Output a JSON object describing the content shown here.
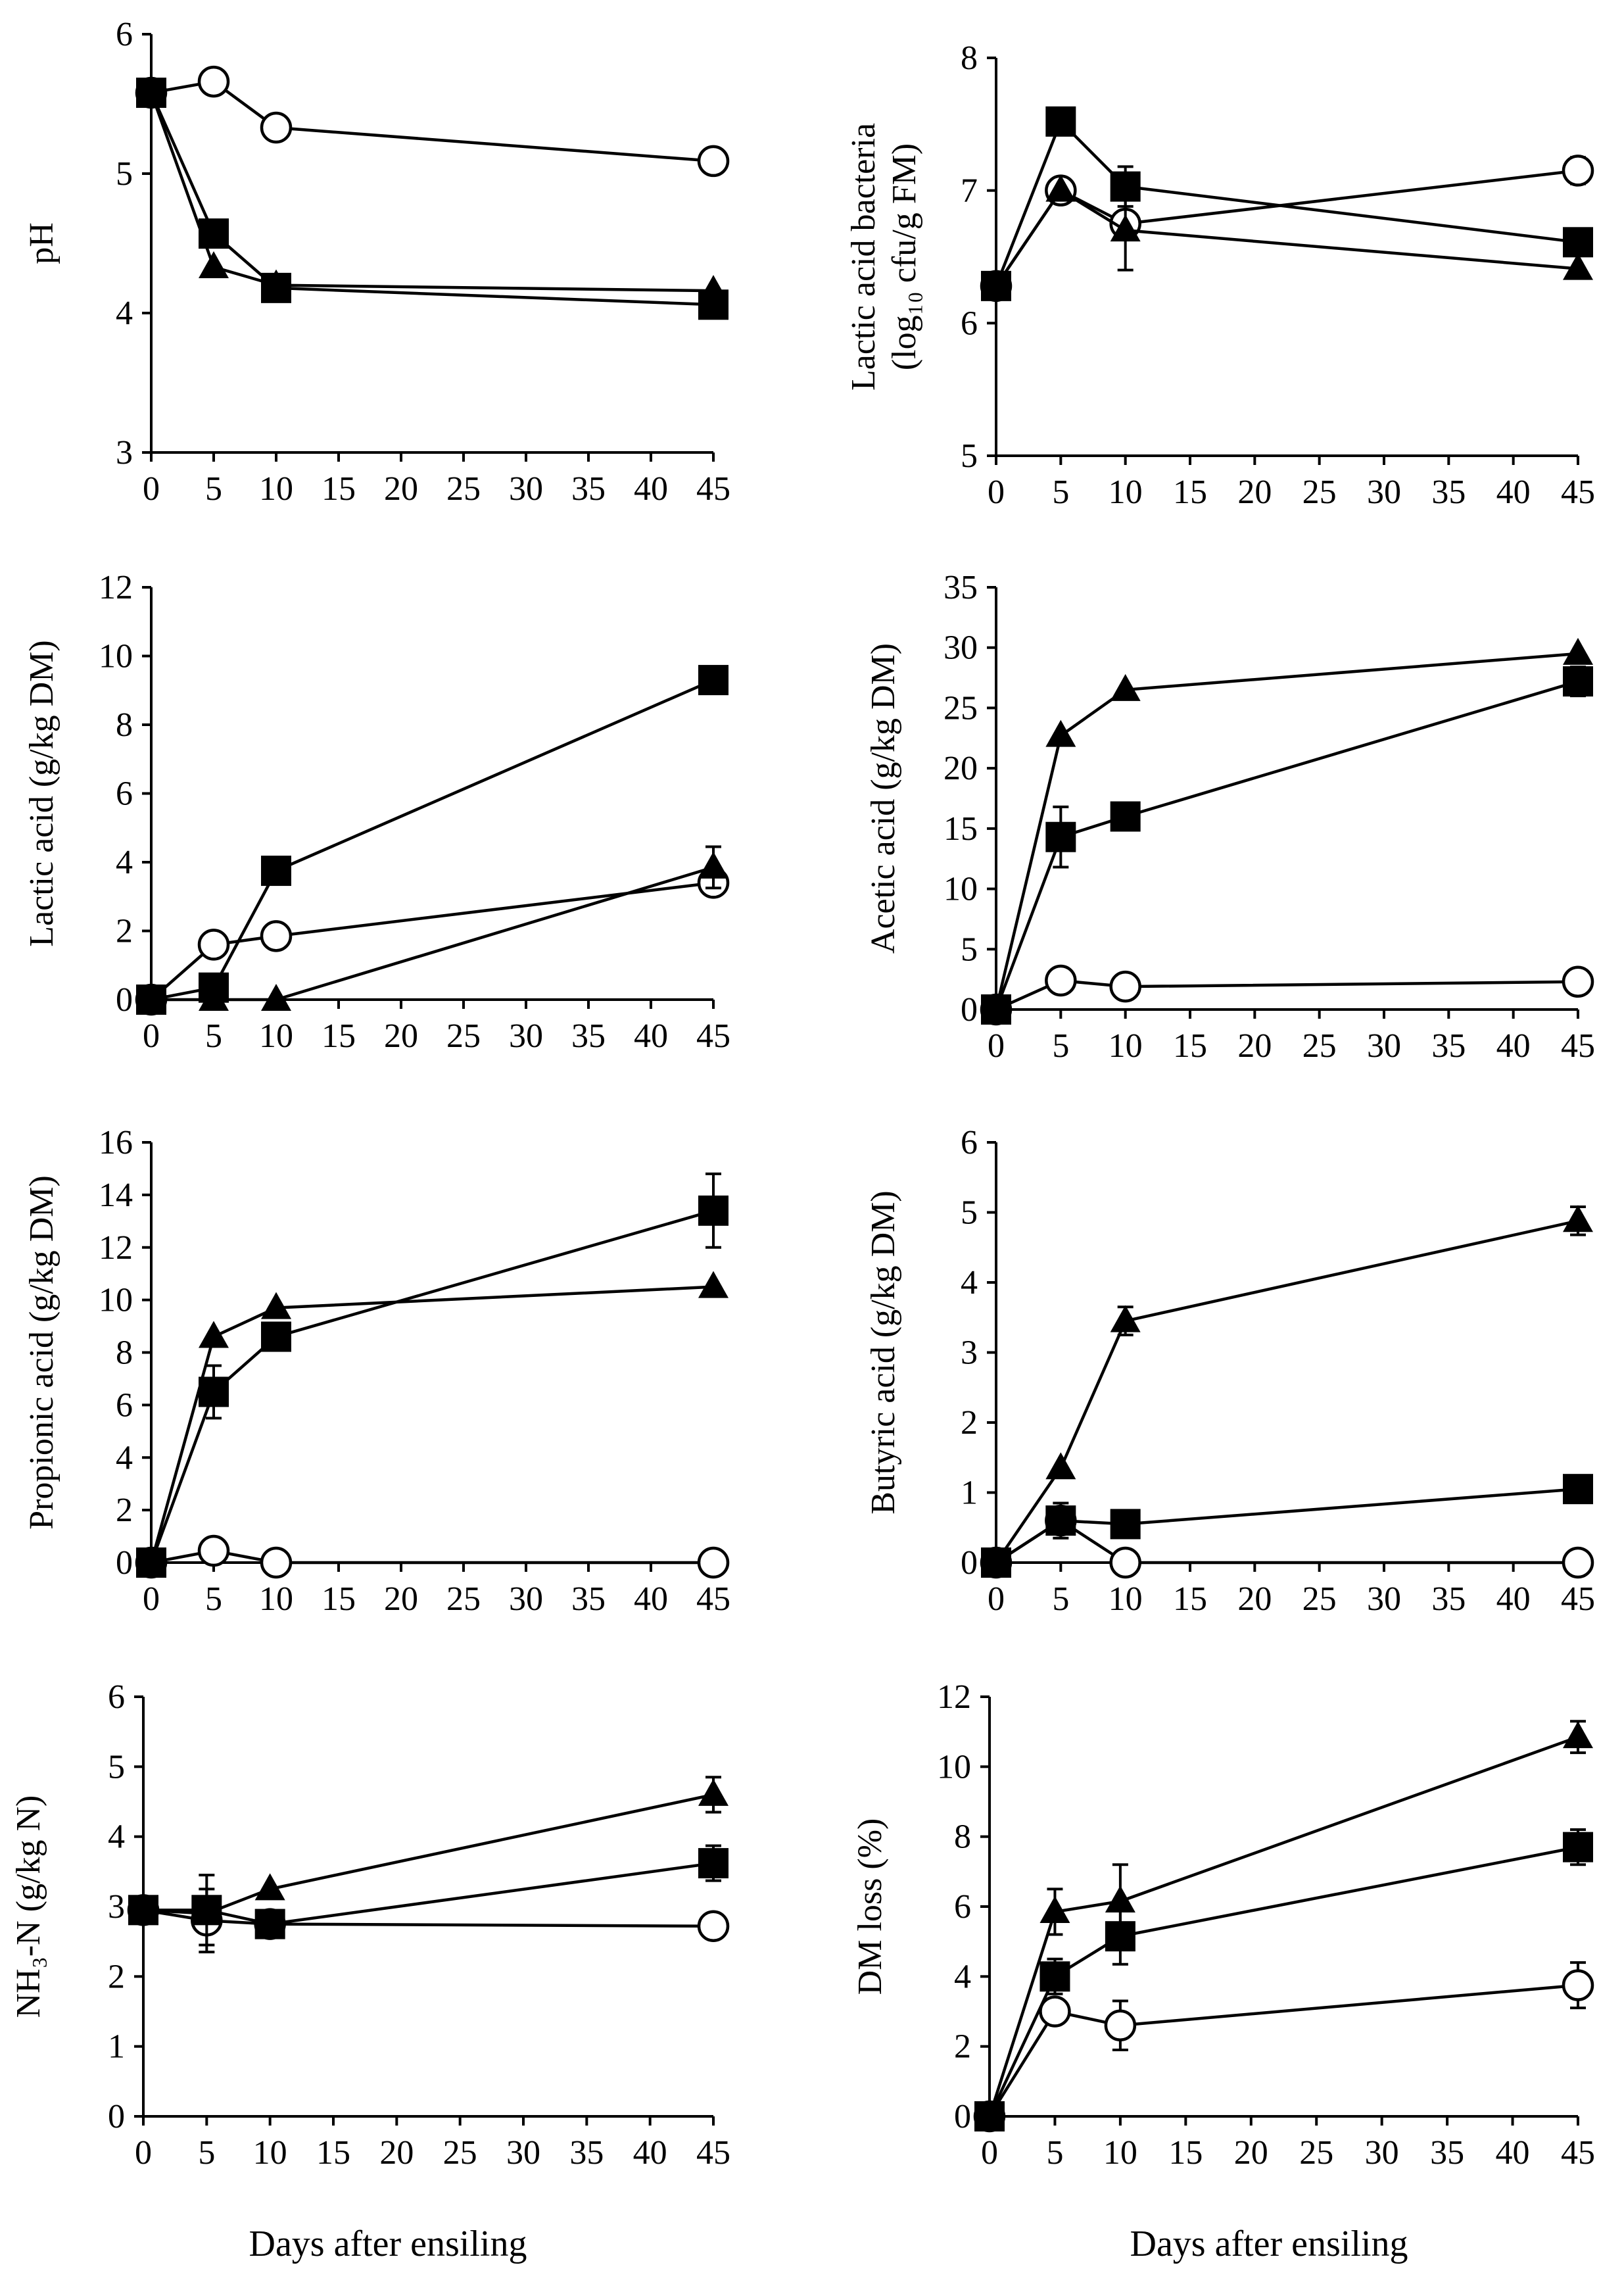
{
  "figure": {
    "xlabel_bottom_left": "Days after ensiling",
    "xlabel_bottom_right": "Days after ensiling"
  },
  "chart_data": [
    {
      "type": "line",
      "ylabel": "pH",
      "xlim": [
        0,
        45
      ],
      "ylim": [
        3,
        6
      ],
      "yticks": [
        "3",
        "4",
        "5",
        "6"
      ],
      "xticks": [
        "0",
        "5",
        "10",
        "15",
        "20",
        "25",
        "30",
        "35",
        "40",
        "45"
      ],
      "x": [
        0,
        5,
        10,
        45
      ],
      "series": [
        {
          "marker": "circle-open",
          "values": [
            5.58,
            5.66,
            5.33,
            5.09
          ],
          "err": [
            0,
            0,
            0,
            0
          ]
        },
        {
          "marker": "triangle",
          "values": [
            5.58,
            4.33,
            4.2,
            4.16
          ],
          "err": [
            0,
            0,
            0,
            0
          ]
        },
        {
          "marker": "square",
          "values": [
            5.58,
            4.57,
            4.18,
            4.06
          ],
          "err": [
            0,
            0,
            0,
            0
          ]
        }
      ]
    },
    {
      "type": "line",
      "ylabel": "Lactic acid bacteria",
      "ylabel_line2": "(log₁₀ cfu/g FM)",
      "xlim": [
        0,
        45
      ],
      "ylim": [
        5,
        8
      ],
      "yticks": [
        "5",
        "6",
        "7",
        "8"
      ],
      "xticks": [
        "0",
        "5",
        "10",
        "15",
        "20",
        "25",
        "30",
        "35",
        "40",
        "45"
      ],
      "x": [
        0,
        5,
        10,
        45
      ],
      "series": [
        {
          "marker": "circle-open",
          "values": [
            6.28,
            7.0,
            6.75,
            7.15
          ],
          "err": [
            0,
            0,
            0,
            0.1
          ]
        },
        {
          "marker": "triangle",
          "values": [
            6.28,
            7.0,
            6.7,
            6.41
          ],
          "err": [
            0,
            0,
            0.3,
            0
          ]
        },
        {
          "marker": "square",
          "values": [
            6.28,
            7.52,
            7.03,
            6.61
          ],
          "err": [
            0,
            0,
            0.15,
            0
          ]
        }
      ]
    },
    {
      "type": "line",
      "ylabel": "Lactic acid (g/kg DM)",
      "xlim": [
        0,
        45
      ],
      "ylim": [
        0,
        12
      ],
      "yticks": [
        "0",
        "2",
        "4",
        "6",
        "8",
        "10",
        "12"
      ],
      "xticks": [
        "0",
        "5",
        "10",
        "15",
        "20",
        "25",
        "30",
        "35",
        "40",
        "45"
      ],
      "x": [
        0,
        5,
        10,
        45
      ],
      "series": [
        {
          "marker": "circle-open",
          "values": [
            0,
            1.6,
            1.85,
            3.4
          ],
          "err": [
            0,
            0,
            0,
            0
          ]
        },
        {
          "marker": "triangle",
          "values": [
            0,
            0,
            0,
            3.85
          ],
          "err": [
            0,
            0,
            0,
            0.6
          ]
        },
        {
          "marker": "square",
          "values": [
            0,
            0.35,
            3.75,
            9.3
          ],
          "err": [
            0,
            0,
            0.25,
            0
          ]
        }
      ]
    },
    {
      "type": "line",
      "ylabel": "Acetic acid (g/kg DM)",
      "xlim": [
        0,
        45
      ],
      "ylim": [
        0,
        35
      ],
      "yticks": [
        "0",
        "5",
        "10",
        "15",
        "20",
        "25",
        "30",
        "35"
      ],
      "xticks": [
        "0",
        "5",
        "10",
        "15",
        "20",
        "25",
        "30",
        "35",
        "40",
        "45"
      ],
      "x": [
        0,
        5,
        10,
        45
      ],
      "series": [
        {
          "marker": "circle-open",
          "values": [
            0,
            2.4,
            1.9,
            2.3
          ],
          "err": [
            0,
            0,
            0,
            0
          ]
        },
        {
          "marker": "triangle",
          "values": [
            0,
            22.7,
            26.5,
            29.5
          ],
          "err": [
            0,
            0,
            0,
            0
          ]
        },
        {
          "marker": "square",
          "values": [
            0,
            14.3,
            16.0,
            27.2
          ],
          "err": [
            0,
            2.5,
            0,
            1.2
          ]
        }
      ]
    },
    {
      "type": "line",
      "ylabel": "Propionic acid (g/kg DM)",
      "xlim": [
        0,
        45
      ],
      "ylim": [
        0,
        16
      ],
      "yticks": [
        "0",
        "2",
        "4",
        "6",
        "8",
        "10",
        "12",
        "14",
        "16"
      ],
      "xticks": [
        "0",
        "5",
        "10",
        "15",
        "20",
        "25",
        "30",
        "35",
        "40",
        "45"
      ],
      "x": [
        0,
        5,
        10,
        45
      ],
      "series": [
        {
          "marker": "circle-open",
          "values": [
            0,
            0.45,
            0,
            0
          ],
          "err": [
            0,
            0,
            0,
            0
          ]
        },
        {
          "marker": "triangle",
          "values": [
            0,
            8.6,
            9.7,
            10.5
          ],
          "err": [
            0,
            0,
            0,
            0
          ]
        },
        {
          "marker": "square",
          "values": [
            0,
            6.5,
            8.6,
            13.4
          ],
          "err": [
            0,
            1.0,
            0,
            1.4
          ]
        }
      ]
    },
    {
      "type": "line",
      "ylabel": "Butyric acid (g/kg DM)",
      "xlim": [
        0,
        45
      ],
      "ylim": [
        0,
        6
      ],
      "yticks": [
        "0",
        "1",
        "2",
        "3",
        "4",
        "5",
        "6"
      ],
      "xticks": [
        "0",
        "5",
        "10",
        "15",
        "20",
        "25",
        "30",
        "35",
        "40",
        "45"
      ],
      "x": [
        0,
        5,
        10,
        45
      ],
      "series": [
        {
          "marker": "circle-open",
          "values": [
            0,
            0.6,
            0,
            0
          ],
          "err": [
            0,
            0,
            0,
            0
          ]
        },
        {
          "marker": "triangle",
          "values": [
            0,
            1.35,
            3.45,
            4.88
          ],
          "err": [
            0,
            0,
            0.2,
            0.2
          ]
        },
        {
          "marker": "square",
          "values": [
            0,
            0.6,
            0.55,
            1.05
          ],
          "err": [
            0,
            0.25,
            0,
            0
          ]
        }
      ]
    },
    {
      "type": "line",
      "ylabel": "NH₃-N (g/kg N)",
      "xlim": [
        0,
        45
      ],
      "ylim": [
        0,
        6
      ],
      "yticks": [
        "0",
        "1",
        "2",
        "3",
        "4",
        "5",
        "6"
      ],
      "xticks": [
        "0",
        "5",
        "10",
        "15",
        "20",
        "25",
        "30",
        "35",
        "40",
        "45"
      ],
      "x": [
        0,
        5,
        10,
        45
      ],
      "series": [
        {
          "marker": "circle-open",
          "values": [
            2.95,
            2.8,
            2.75,
            2.72
          ],
          "err": [
            0,
            0.45,
            0,
            0
          ]
        },
        {
          "marker": "triangle",
          "values": [
            2.95,
            2.9,
            3.25,
            4.6
          ],
          "err": [
            0,
            0,
            0,
            0.25
          ]
        },
        {
          "marker": "square",
          "values": [
            2.95,
            2.95,
            2.75,
            3.62
          ],
          "err": [
            0,
            0.5,
            0,
            0.25
          ]
        }
      ]
    },
    {
      "type": "line",
      "ylabel": "DM loss (%)",
      "xlim": [
        0,
        45
      ],
      "ylim": [
        0,
        12
      ],
      "yticks": [
        "0",
        "2",
        "4",
        "6",
        "8",
        "10",
        "12"
      ],
      "xticks": [
        "0",
        "5",
        "10",
        "15",
        "20",
        "25",
        "30",
        "35",
        "40",
        "45"
      ],
      "x": [
        0,
        5,
        10,
        45
      ],
      "series": [
        {
          "marker": "circle-open",
          "values": [
            0,
            3.0,
            2.6,
            3.75
          ],
          "err": [
            0,
            0,
            0.7,
            0.65
          ]
        },
        {
          "marker": "triangle",
          "values": [
            0,
            5.85,
            6.15,
            10.85
          ],
          "err": [
            0,
            0.65,
            1.05,
            0.45
          ]
        },
        {
          "marker": "square",
          "values": [
            0,
            4.0,
            5.15,
            7.7
          ],
          "err": [
            0,
            0.5,
            0.8,
            0.5
          ]
        }
      ]
    }
  ]
}
